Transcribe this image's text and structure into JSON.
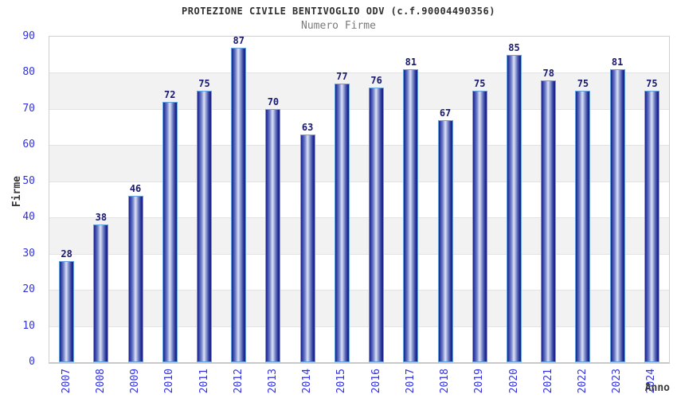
{
  "header": {
    "title": "PROTEZIONE CIVILE BENTIVOGLIO ODV (c.f.90004490356)",
    "subtitle": "Numero Firme"
  },
  "chart_data": {
    "type": "bar",
    "title": "PROTEZIONE CIVILE BENTIVOGLIO ODV (c.f.90004490356)",
    "subtitle": "Numero Firme",
    "xlabel": "Anno",
    "ylabel": "Firme",
    "categories": [
      "2007",
      "2008",
      "2009",
      "2010",
      "2011",
      "2012",
      "2013",
      "2014",
      "2015",
      "2016",
      "2017",
      "2018",
      "2019",
      "2020",
      "2021",
      "2022",
      "2023",
      "2024"
    ],
    "values": [
      28,
      38,
      46,
      72,
      75,
      87,
      70,
      63,
      77,
      76,
      81,
      67,
      75,
      85,
      78,
      75,
      81,
      75
    ],
    "ylim": [
      0,
      90
    ],
    "ytick_step": 10,
    "yticks": [
      0,
      10,
      20,
      30,
      40,
      50,
      60,
      70,
      80,
      90
    ],
    "grid": "horizontal gridlines every 10 with alternating gray bands (70-80, 50-60, 30-40, 10-20)",
    "legend": "none",
    "colors": {
      "bar_dark": "#1a2187",
      "bar_highlight": "#dde2f4",
      "bar_outline": "#66a3e0",
      "tick_label": "#3232e0",
      "value_label": "#191970",
      "band_gray": "#f2f2f2",
      "gridline": "#e3e3e3",
      "title_text": "#2f2f2f",
      "subtitle_text": "#7a7a7a"
    }
  }
}
